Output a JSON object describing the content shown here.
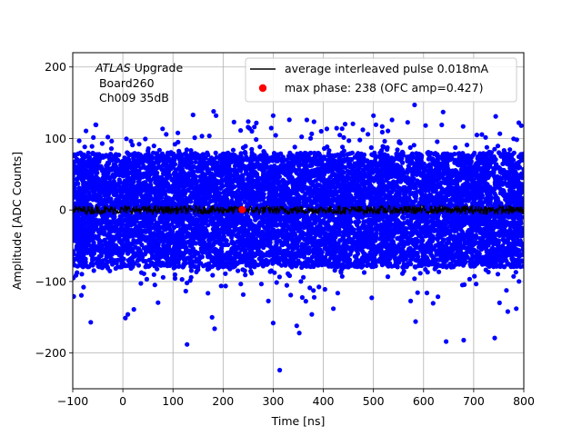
{
  "chart_data": {
    "type": "scatter",
    "xlabel": "Time [ns]",
    "ylabel": "Amplitude [ADC Counts]",
    "xlim": [
      -100,
      800
    ],
    "ylim": [
      -250,
      220
    ],
    "xticks": [
      -100,
      0,
      100,
      200,
      300,
      400,
      500,
      600,
      700,
      800
    ],
    "yticks": [
      -200,
      -100,
      0,
      100,
      200
    ],
    "grid": true,
    "legend_position": "top-right",
    "annotation": {
      "line1_italic": "ATLAS",
      "line1_rest": " Upgrade",
      "line2": " Board260",
      "line3": " Ch009 35dB"
    },
    "series": [
      {
        "name": "average interleaved pulse 0.018mA",
        "kind": "line",
        "color": "#000000",
        "x_range": [
          -100,
          800
        ],
        "baseline": 0,
        "noise_amplitude": 6
      },
      {
        "name": "max phase: 238 (OFC amp=0.427)",
        "kind": "marker",
        "color": "#ff0000",
        "x": 238,
        "y": 0.427
      }
    ],
    "scatter_cloud": {
      "color": "#0000ff",
      "x_range": [
        -100,
        800
      ],
      "center": 0,
      "dense_band": [
        -80,
        80
      ],
      "outlier_points": [
        {
          "x": -98,
          "y": -121
        },
        {
          "x": -64,
          "y": -157
        },
        {
          "x": 5,
          "y": -151
        },
        {
          "x": 10,
          "y": -146
        },
        {
          "x": 22,
          "y": -139
        },
        {
          "x": 128,
          "y": -188
        },
        {
          "x": 178,
          "y": -150
        },
        {
          "x": 183,
          "y": -166
        },
        {
          "x": 300,
          "y": -158
        },
        {
          "x": 313,
          "y": -224
        },
        {
          "x": 347,
          "y": -162
        },
        {
          "x": 352,
          "y": -172
        },
        {
          "x": 377,
          "y": -146
        },
        {
          "x": 420,
          "y": -138
        },
        {
          "x": 584,
          "y": -156
        },
        {
          "x": 645,
          "y": -184
        },
        {
          "x": 680,
          "y": -182
        },
        {
          "x": 742,
          "y": -179
        },
        {
          "x": 768,
          "y": -142
        },
        {
          "x": 785,
          "y": -138
        },
        {
          "x": 140,
          "y": 133
        },
        {
          "x": 181,
          "y": 138
        },
        {
          "x": 186,
          "y": 132
        },
        {
          "x": 300,
          "y": 132
        },
        {
          "x": 367,
          "y": 126
        },
        {
          "x": 500,
          "y": 132
        },
        {
          "x": 582,
          "y": 147
        },
        {
          "x": 639,
          "y": 137
        },
        {
          "x": 744,
          "y": 131
        },
        {
          "x": 790,
          "y": 122
        },
        {
          "x": 795,
          "y": 118
        },
        {
          "x": -30,
          "y": 102
        }
      ]
    }
  }
}
